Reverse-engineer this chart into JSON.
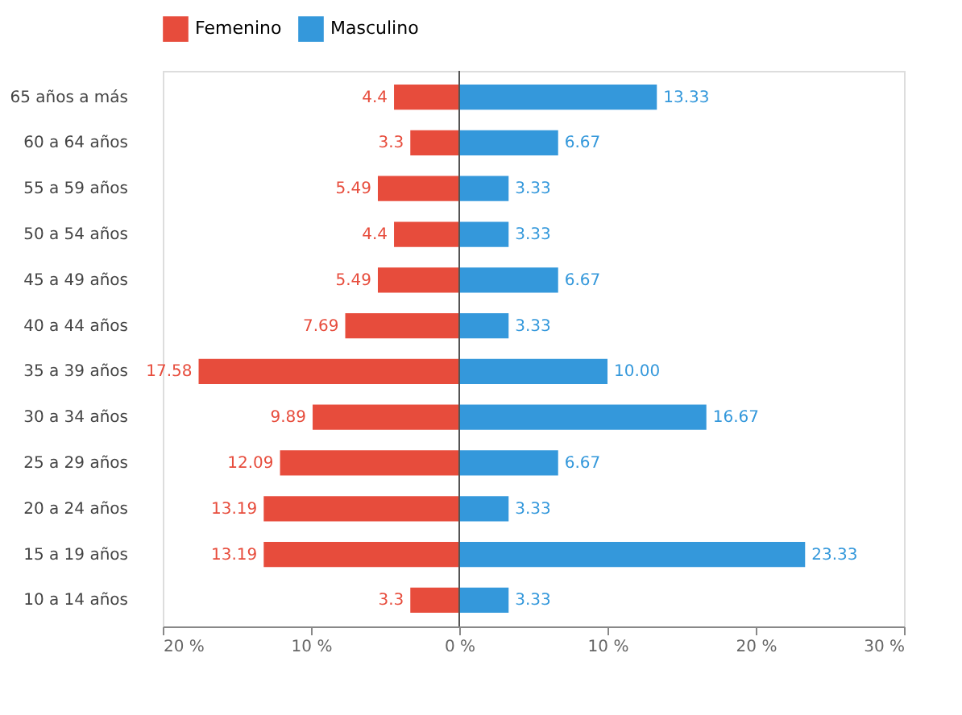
{
  "chart_data": {
    "type": "bar",
    "orientation": "horizontal",
    "categories": [
      "65 años a más",
      "60 a 64 años",
      "55 a 59 años",
      "50 a 54 años",
      "45 a 49 años",
      "40 a 44 años",
      "35 a 39 años",
      "30 a 34 años",
      "25 a 29 años",
      "20 a 24 años",
      "15 a 19 años",
      "10 a 14 años"
    ],
    "series": [
      {
        "name": "Femenino",
        "color": "#e74c3c",
        "values": [
          4.4,
          3.3,
          5.49,
          4.4,
          5.49,
          7.69,
          17.58,
          9.89,
          12.09,
          13.19,
          13.19,
          3.3
        ],
        "base": [
          -4.4,
          -3.3,
          -5.49,
          -4.4,
          -5.49,
          -7.69,
          -17.58,
          -9.89,
          -12.09,
          -13.19,
          -13.19,
          -3.3
        ]
      },
      {
        "name": "Masculino",
        "color": "#3498db",
        "values": [
          13.33,
          6.67,
          3.33,
          3.33,
          6.67,
          3.33,
          10.0,
          16.67,
          6.67,
          3.33,
          23.33,
          3.33
        ],
        "value_labels": [
          "13.33",
          "6.67",
          "3.33",
          "3.33",
          "6.67",
          "3.33",
          "10.00",
          "16.67",
          "6.67",
          "3.33",
          "23.33",
          "3.33"
        ]
      }
    ],
    "xlim": [
      -20,
      30
    ],
    "xticks": [
      {
        "value": -20,
        "label": "20 %"
      },
      {
        "value": -10,
        "label": "10 %"
      },
      {
        "value": 0,
        "label": "0 %"
      },
      {
        "value": 10,
        "label": "10 %"
      },
      {
        "value": 20,
        "label": "20 %"
      },
      {
        "value": 30,
        "label": "30 %"
      }
    ],
    "ref_lines": [
      {
        "axis": "x",
        "value": 0,
        "color": "#555555"
      }
    ],
    "data_labels": true,
    "grid": false,
    "legend": "top"
  }
}
